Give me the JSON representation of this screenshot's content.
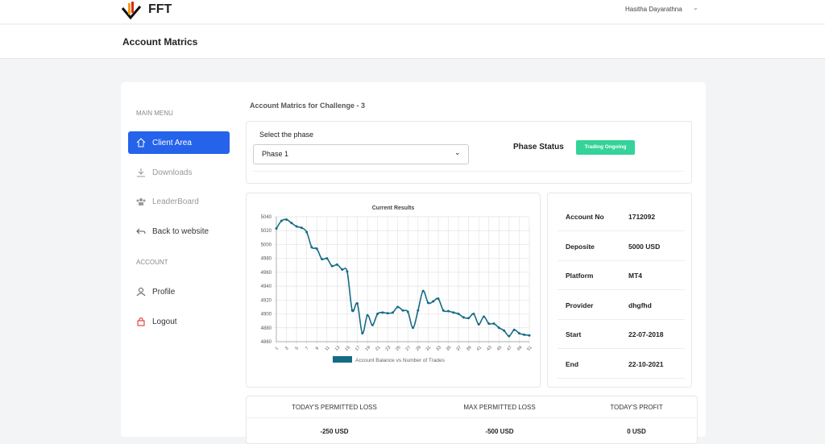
{
  "header": {
    "logo": "FFT",
    "user": "Hasitha Dayarathna"
  },
  "page_title": "Account Matrics",
  "sidebar": {
    "main_menu": "MAIN MENU",
    "items": [
      "Client Area",
      "Downloads",
      "LeaderBoard",
      "Back to website"
    ],
    "account": "ACCOUNT",
    "account_items": [
      "Profile",
      "Logout"
    ]
  },
  "main": {
    "heading": "Account Matrics for Challenge - 3",
    "phase_label": "Select the phase",
    "phase_value": "Phase 1",
    "status_label": "Phase Status",
    "status": "Trading Ongoing"
  },
  "chart_data": {
    "type": "line",
    "title": "Current Results",
    "x": [
      1,
      2,
      3,
      4,
      5,
      6,
      7,
      8,
      9,
      10,
      11,
      12,
      13,
      14,
      15,
      16,
      17,
      18,
      19,
      20,
      21,
      22,
      23,
      24,
      25,
      26,
      27,
      28,
      29,
      30,
      31,
      32,
      33,
      34,
      35,
      36,
      37,
      38,
      39,
      40,
      41,
      42,
      43,
      44,
      45,
      46,
      47,
      48,
      49,
      50,
      51
    ],
    "series": [
      {
        "name": "Account Balance vs Number of Trades",
        "color": "#156b86",
        "values": [
          5023,
          5034,
          5036,
          5031,
          5026,
          5024,
          5018,
          4996,
          4994,
          4979,
          4980,
          4969,
          4971,
          4964,
          4961,
          4905,
          4915,
          4872,
          4898,
          4884,
          4900,
          4902,
          4901,
          4902,
          4910,
          4905,
          4903,
          4880,
          4905,
          4933,
          4916,
          4918,
          4922,
          4905,
          4904,
          4902,
          4900,
          4895,
          4894,
          4900,
          4885,
          4896,
          4886,
          4886,
          4880,
          4876,
          4868,
          4877,
          4872,
          4870,
          4869
        ]
      }
    ],
    "xlim": [
      1,
      51
    ],
    "xticks": [
      1,
      3,
      5,
      7,
      9,
      11,
      13,
      15,
      17,
      19,
      21,
      23,
      25,
      27,
      29,
      31,
      33,
      35,
      37,
      39,
      41,
      43,
      45,
      47,
      49,
      51
    ],
    "ylim": [
      4860,
      5040
    ],
    "yticks": [
      4860,
      4880,
      4900,
      4920,
      4940,
      4960,
      4980,
      5000,
      5020,
      5040
    ],
    "grid": true
  },
  "account": {
    "rows": [
      [
        "Account No",
        "1712092"
      ],
      [
        "Deposite",
        "5000 USD"
      ],
      [
        "Platform",
        "MT4"
      ],
      [
        "Provider",
        "dhgfhd"
      ],
      [
        "Start",
        "22-07-2018"
      ],
      [
        "End",
        "22-10-2021"
      ]
    ]
  },
  "limits": {
    "headers": [
      "TODAY'S PERMITTED LOSS",
      "MAX PERMITTED LOSS",
      "TODAY'S PROFIT"
    ],
    "values": [
      "-250 USD",
      "-500 USD",
      "0 USD"
    ]
  }
}
